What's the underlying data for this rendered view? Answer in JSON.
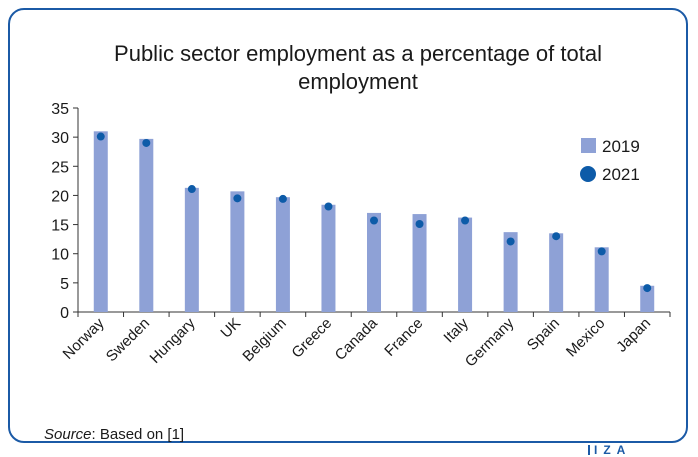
{
  "chart_data": {
    "type": "bar",
    "title_lines": [
      "Public sector employment as a percentage of total",
      "employment"
    ],
    "categories": [
      "Norway",
      "Sweden",
      "Hungary",
      "UK",
      "Belgium",
      "Greece",
      "Canada",
      "France",
      "Italy",
      "Germany",
      "Spain",
      "Mexico",
      "Japan"
    ],
    "series": [
      {
        "name": "2019",
        "kind": "bar",
        "color": "#8ea1d6",
        "values": [
          31.0,
          29.7,
          21.3,
          20.7,
          19.7,
          18.4,
          17.0,
          16.8,
          16.2,
          13.7,
          13.5,
          11.1,
          4.5
        ]
      },
      {
        "name": "2021",
        "kind": "dot",
        "color": "#0d5ba8",
        "values": [
          30.1,
          29.0,
          21.1,
          19.5,
          19.4,
          18.1,
          15.7,
          15.1,
          15.7,
          12.1,
          13.0,
          10.4,
          4.1
        ]
      }
    ],
    "yticks": [
      0,
      5,
      10,
      15,
      20,
      25,
      30,
      35
    ],
    "ylim": [
      0,
      35
    ],
    "grid": false,
    "legend_position": "top-right"
  },
  "source": {
    "label": "Source",
    "text": ": Based on [1]"
  },
  "logo": "IZA"
}
